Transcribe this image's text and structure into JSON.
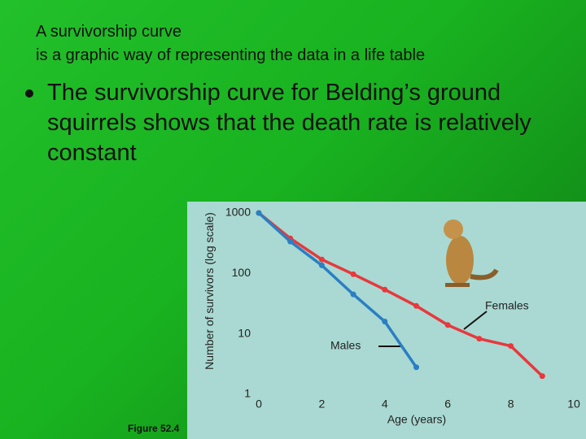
{
  "header": {
    "lines": [
      "A survivorship curve",
      "is a graphic way of representing the data in a life table"
    ]
  },
  "bullet": "The survivorship curve for Belding’s ground squirrels shows that the death rate is relatively constant",
  "caption": "Figure 52.4",
  "chart_data": {
    "type": "line",
    "x_label": "Age (years)",
    "y_label": "Number of survivors (log scale)",
    "x": [
      0,
      1,
      2,
      3,
      4,
      5,
      6,
      7,
      8,
      9
    ],
    "series": [
      {
        "name": "Females",
        "color": "#e8383d",
        "values": [
          1000,
          380,
          170,
          97,
          54,
          29,
          14,
          8.3,
          6.3,
          2.0
        ]
      },
      {
        "name": "Males",
        "color": "#2a7fc4",
        "values": [
          1000,
          337,
          136,
          45,
          16,
          2.8,
          null,
          null,
          null,
          null
        ]
      }
    ],
    "xlim": [
      0,
      10
    ],
    "xticks": [
      0,
      2,
      4,
      6,
      8,
      10
    ],
    "ylim": [
      1,
      1000
    ],
    "yticks": [
      1,
      10,
      100,
      1000
    ],
    "log_y": true
  }
}
